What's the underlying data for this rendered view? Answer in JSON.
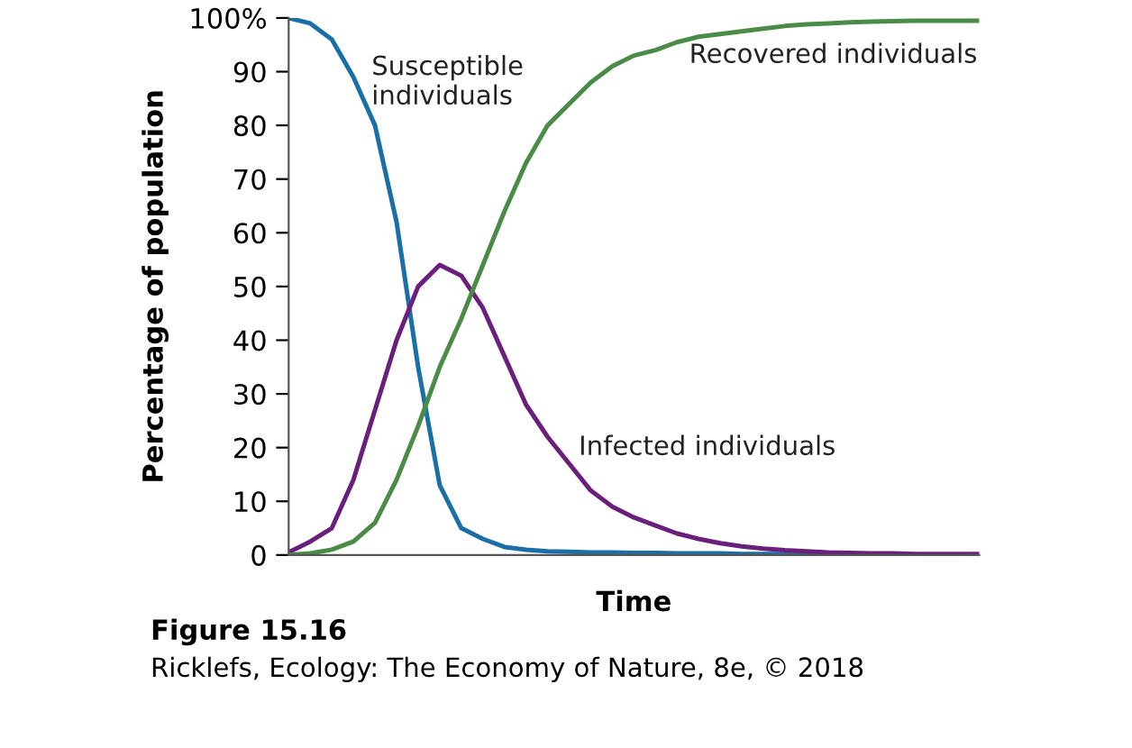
{
  "chart_data": {
    "type": "line",
    "xlabel": "Time",
    "ylabel": "Percentage of population",
    "categories": [
      null,
      null,
      null,
      null,
      null,
      null,
      null,
      null,
      null,
      null,
      null,
      null,
      null,
      null,
      null,
      null,
      null,
      null,
      null,
      null,
      null,
      null,
      null,
      null,
      null,
      null,
      null,
      null,
      null,
      null,
      null,
      null,
      null
    ],
    "series": [
      {
        "name": "Susceptible individuals",
        "color": "#1a6fa8",
        "values": [
          100,
          99,
          96,
          89,
          80,
          62,
          35,
          13,
          5,
          3,
          1.5,
          1,
          0.7,
          0.6,
          0.5,
          0.5,
          0.4,
          0.4,
          0.3,
          0.3,
          0.3,
          0.2,
          0.2,
          0.2,
          0.2,
          0.2,
          null,
          null,
          null,
          null,
          null,
          null,
          null
        ]
      },
      {
        "name": "Infected individuals",
        "color": "#6a1f7d",
        "values": [
          0.5,
          2.5,
          5,
          14,
          27,
          40,
          50,
          54,
          52,
          46,
          37,
          28,
          22,
          17,
          12,
          9,
          7,
          5.5,
          4,
          3,
          2.2,
          1.6,
          1.2,
          0.9,
          0.7,
          0.5,
          0.4,
          0.3,
          0.3,
          0.2,
          0.2,
          0.2,
          0.2
        ]
      },
      {
        "name": "Recovered individuals",
        "color": "#4a8c47",
        "values": [
          0,
          0.3,
          1,
          2.5,
          6,
          14,
          24,
          35,
          44,
          54,
          64,
          73,
          80,
          84,
          88,
          91,
          93,
          94,
          95.5,
          96.5,
          97,
          97.5,
          98,
          98.5,
          98.8,
          99,
          99.2,
          99.3,
          99.4,
          99.5,
          99.5,
          99.5,
          99.5
        ]
      }
    ],
    "ylim": [
      0,
      100
    ],
    "yticks": [
      0,
      10,
      20,
      30,
      40,
      50,
      60,
      70,
      80,
      90,
      {
        "value": 100,
        "label": "100%"
      }
    ],
    "tick_labels": "y",
    "grid": false,
    "legend": false,
    "line_style": "solid",
    "marker": "none",
    "annotations": [
      "Figure 15.16",
      "Ricklefs, Ecology: The Economy of Nature, 8e, © 2018"
    ]
  }
}
